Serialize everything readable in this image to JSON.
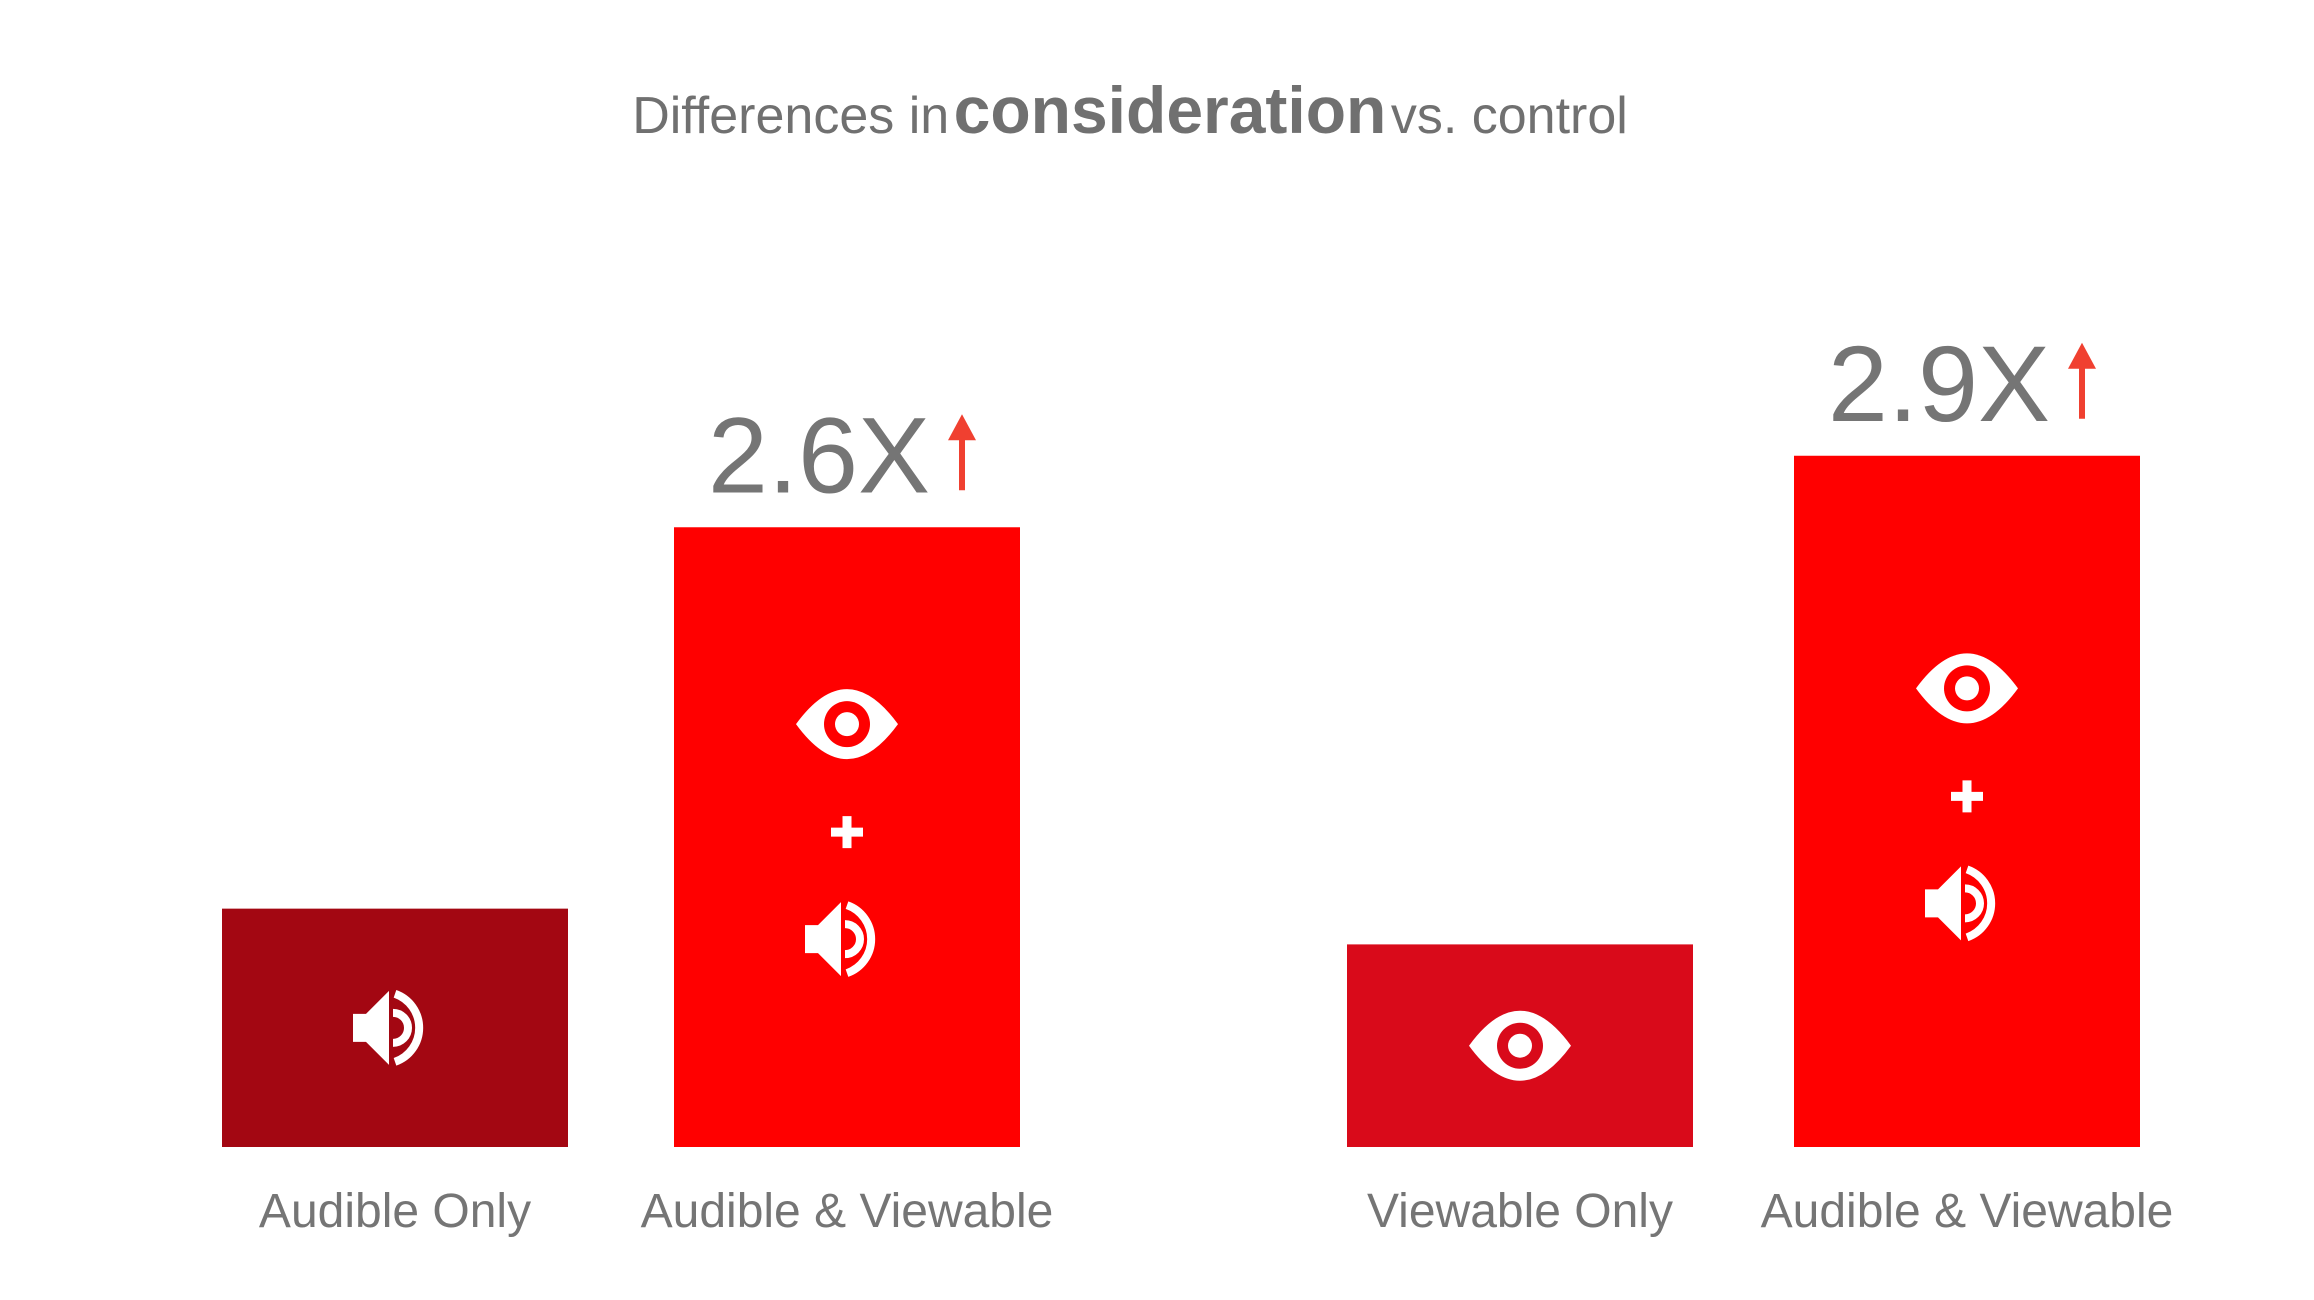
{
  "chart_data": {
    "type": "bar",
    "title": {
      "prefix": "Differences in",
      "emphasis": "consideration",
      "suffix": "vs. control"
    },
    "xlabel": "",
    "ylabel": "",
    "ylim": [
      0,
      3.05
    ],
    "grid": false,
    "categories": [
      "Audible Only",
      "Audible & Viewable",
      "Viewable Only",
      "Audible & Viewable"
    ],
    "values": [
      1.0,
      2.6,
      0.85,
      2.9
    ],
    "data_labels": [
      "",
      "2.6X",
      "",
      "2.9X"
    ],
    "icons": [
      [
        "speaker-icon"
      ],
      [
        "eye-icon",
        "plus-icon",
        "speaker-icon"
      ],
      [
        "eye-icon"
      ],
      [
        "eye-icon",
        "plus-icon",
        "speaker-icon"
      ]
    ],
    "colors": [
      "#a30712",
      "#ff0000",
      "#d90a1a",
      "#ff0000"
    ],
    "arrow_color": "#f04030",
    "label_color": "#757575"
  }
}
